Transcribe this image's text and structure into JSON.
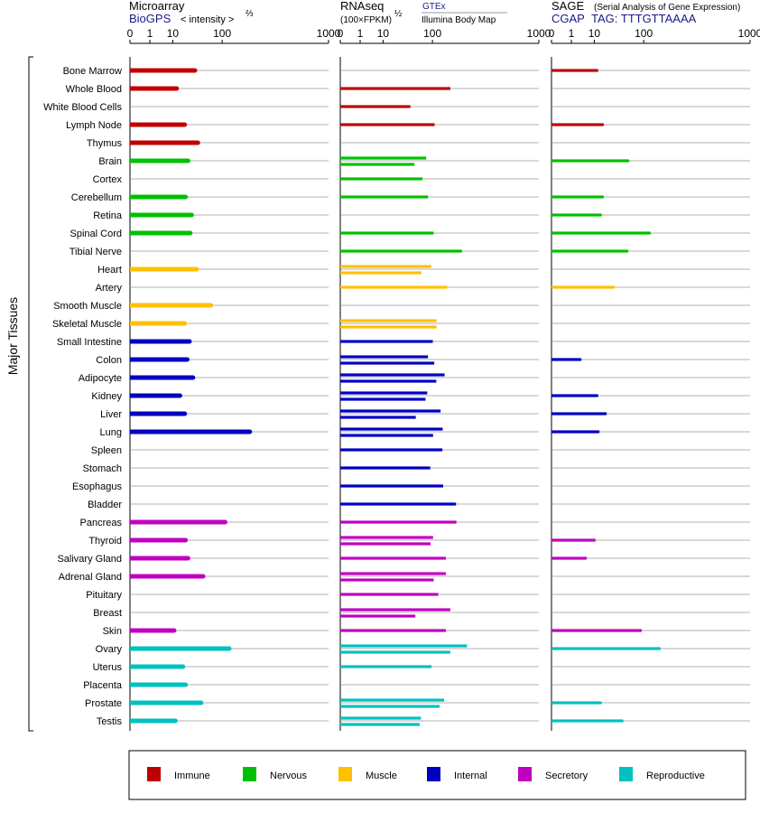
{
  "headers": {
    "microarray": {
      "title": "Microarray",
      "source": "BioGPS",
      "unit": "< intensity >",
      "unit_sup": "⅔"
    },
    "rnaseq": {
      "title": "RNAseq",
      "unit": "(100×FPKM)",
      "unit_sup": "½",
      "source1": "GTEx",
      "source2": "Illumina Body Map"
    },
    "sage": {
      "title": "SAGE",
      "subtitle": "(Serial Analysis of Gene Expression)",
      "source": "CGAP",
      "tag": "TAG: TTTGTTAAAA"
    }
  },
  "y_axis_label": "Major Tissues",
  "colors": {
    "immune": "#c00000",
    "nervous": "#00c000",
    "muscle": "#ffc000",
    "internal": "#0000c0",
    "secretory": "#c000c0",
    "reproductive": "#00c0c0",
    "grid": "#999999"
  },
  "legend": [
    {
      "key": "immune",
      "label": "Immune"
    },
    {
      "key": "nervous",
      "label": "Nervous"
    },
    {
      "key": "muscle",
      "label": "Muscle"
    },
    {
      "key": "internal",
      "label": "Internal"
    },
    {
      "key": "secretory",
      "label": "Secretory"
    },
    {
      "key": "reproductive",
      "label": "Reproductive"
    }
  ],
  "chart_data": [
    {
      "type": "bar",
      "title": "Microarray",
      "x_ticks": [
        "0",
        "1",
        "10",
        "100",
        "1000"
      ],
      "xlim": [
        0,
        1000
      ],
      "categories": [
        "Bone Marrow",
        "Whole Blood",
        "White Blood Cells",
        "Lymph Node",
        "Thymus",
        "Brain",
        "Cortex",
        "Cerebellum",
        "Retina",
        "Spinal Cord",
        "Tibial Nerve",
        "Heart",
        "Artery",
        "Smooth Muscle",
        "Skeletal Muscle",
        "Small Intestine",
        "Colon",
        "Adipocyte",
        "Kidney",
        "Liver",
        "Lung",
        "Spleen",
        "Stomach",
        "Esophagus",
        "Bladder",
        "Pancreas",
        "Thyroid",
        "Salivary Gland",
        "Adrenal Gland",
        "Pituitary",
        "Breast",
        "Skin",
        "Ovary",
        "Uterus",
        "Placenta",
        "Prostate",
        "Testis"
      ],
      "groups": [
        "immune",
        "immune",
        "immune",
        "immune",
        "immune",
        "nervous",
        "nervous",
        "nervous",
        "nervous",
        "nervous",
        "nervous",
        "muscle",
        "muscle",
        "muscle",
        "muscle",
        "internal",
        "internal",
        "internal",
        "internal",
        "internal",
        "internal",
        "internal",
        "internal",
        "internal",
        "internal",
        "secretory",
        "secretory",
        "secretory",
        "secretory",
        "secretory",
        "secretory",
        "secretory",
        "reproductive",
        "reproductive",
        "reproductive",
        "reproductive",
        "reproductive"
      ],
      "values": [
        [
          35
        ],
        [
          13
        ],
        [],
        [
          21
        ],
        [
          40
        ],
        [
          25
        ],
        [],
        [
          22
        ],
        [
          30
        ],
        [
          28
        ],
        [],
        [
          38
        ],
        [],
        [
          68
        ],
        [
          21
        ],
        [
          27
        ],
        [
          24
        ],
        [
          32
        ],
        [
          16
        ],
        [
          21
        ],
        [
          220
        ],
        [],
        [],
        [],
        [],
        [
          110
        ],
        [
          22
        ],
        [
          25
        ],
        [
          50
        ],
        [],
        [],
        [
          11
        ],
        [
          125
        ],
        [
          19
        ],
        [
          22
        ],
        [
          46
        ],
        [
          12
        ]
      ]
    },
    {
      "type": "bar",
      "title": "RNAseq",
      "x_ticks": [
        "0",
        "1",
        "10",
        "100",
        "1000"
      ],
      "xlim": [
        0,
        1000
      ],
      "categories": [
        "Bone Marrow",
        "Whole Blood",
        "White Blood Cells",
        "Lymph Node",
        "Thymus",
        "Brain",
        "Cortex",
        "Cerebellum",
        "Retina",
        "Spinal Cord",
        "Tibial Nerve",
        "Heart",
        "Artery",
        "Smooth Muscle",
        "Skeletal Muscle",
        "Small Intestine",
        "Colon",
        "Adipocyte",
        "Kidney",
        "Liver",
        "Lung",
        "Spleen",
        "Stomach",
        "Esophagus",
        "Bladder",
        "Pancreas",
        "Thyroid",
        "Salivary Gland",
        "Adrenal Gland",
        "Pituitary",
        "Breast",
        "Skin",
        "Ovary",
        "Uterus",
        "Placenta",
        "Prostate",
        "Testis"
      ],
      "groups": [
        "immune",
        "immune",
        "immune",
        "immune",
        "immune",
        "nervous",
        "nervous",
        "nervous",
        "nervous",
        "nervous",
        "nervous",
        "muscle",
        "muscle",
        "muscle",
        "muscle",
        "internal",
        "internal",
        "internal",
        "internal",
        "internal",
        "internal",
        "internal",
        "internal",
        "internal",
        "internal",
        "secretory",
        "secretory",
        "secretory",
        "secretory",
        "secretory",
        "secretory",
        "secretory",
        "reproductive",
        "reproductive",
        "reproductive",
        "reproductive",
        "reproductive"
      ],
      "values": [
        [],
        [
          170
        ],
        [
          44
        ],
        [
          107
        ],
        [],
        [
          81,
          52
        ],
        [
          71
        ],
        [
          86
        ],
        [],
        [
          104
        ],
        [
          230
        ],
        [
          96,
          68
        ],
        [
          156
        ],
        [],
        [
          114,
          114
        ],
        [
          101
        ],
        [
          86,
          106
        ],
        [
          145,
          113
        ],
        [
          84,
          79
        ],
        [
          129,
          55
        ],
        [
          137,
          102
        ],
        [
          136
        ],
        [
          93
        ],
        [
          139
        ],
        [
          198
        ],
        [
          200
        ],
        [
          102,
          94
        ],
        [
          150
        ],
        [
          150,
          104
        ],
        [
          120
        ],
        [
          170,
          54
        ],
        [
          150
        ],
        [
          260,
          170
        ],
        [
          97
        ],
        [],
        [
          143,
          125
        ],
        [
          67,
          64
        ]
      ]
    },
    {
      "type": "bar",
      "title": "SAGE",
      "x_ticks": [
        "0",
        "1",
        "10",
        "100",
        "1000"
      ],
      "xlim": [
        0,
        1000
      ],
      "categories": [
        "Bone Marrow",
        "Whole Blood",
        "White Blood Cells",
        "Lymph Node",
        "Thymus",
        "Brain",
        "Cortex",
        "Cerebellum",
        "Retina",
        "Spinal Cord",
        "Tibial Nerve",
        "Heart",
        "Artery",
        "Smooth Muscle",
        "Skeletal Muscle",
        "Small Intestine",
        "Colon",
        "Adipocyte",
        "Kidney",
        "Liver",
        "Lung",
        "Spleen",
        "Stomach",
        "Esophagus",
        "Bladder",
        "Pancreas",
        "Thyroid",
        "Salivary Gland",
        "Adrenal Gland",
        "Pituitary",
        "Breast",
        "Skin",
        "Ovary",
        "Uterus",
        "Placenta",
        "Prostate",
        "Testis"
      ],
      "groups": [
        "immune",
        "immune",
        "immune",
        "immune",
        "immune",
        "nervous",
        "nervous",
        "nervous",
        "nervous",
        "nervous",
        "nervous",
        "muscle",
        "muscle",
        "muscle",
        "muscle",
        "internal",
        "internal",
        "internal",
        "internal",
        "internal",
        "internal",
        "internal",
        "internal",
        "internal",
        "internal",
        "secretory",
        "secretory",
        "secretory",
        "secretory",
        "secretory",
        "secretory",
        "secretory",
        "reproductive",
        "reproductive",
        "reproductive",
        "reproductive",
        "reproductive"
      ],
      "values": [
        [
          12
        ],
        [],
        [],
        [
          17
        ],
        [],
        [
          57
        ],
        [],
        [
          17
        ],
        [
          15
        ],
        [
          120
        ],
        [
          55
        ],
        [],
        [
          30
        ],
        [],
        [],
        [],
        [
          3
        ],
        [],
        [
          12
        ],
        [
          20
        ],
        [
          13
        ],
        [],
        [],
        [],
        [],
        [],
        [
          10
        ],
        [
          5
        ],
        [],
        [],
        [],
        [
          90
        ],
        [
          160
        ],
        [],
        [],
        [
          15
        ],
        [
          45
        ]
      ]
    }
  ]
}
